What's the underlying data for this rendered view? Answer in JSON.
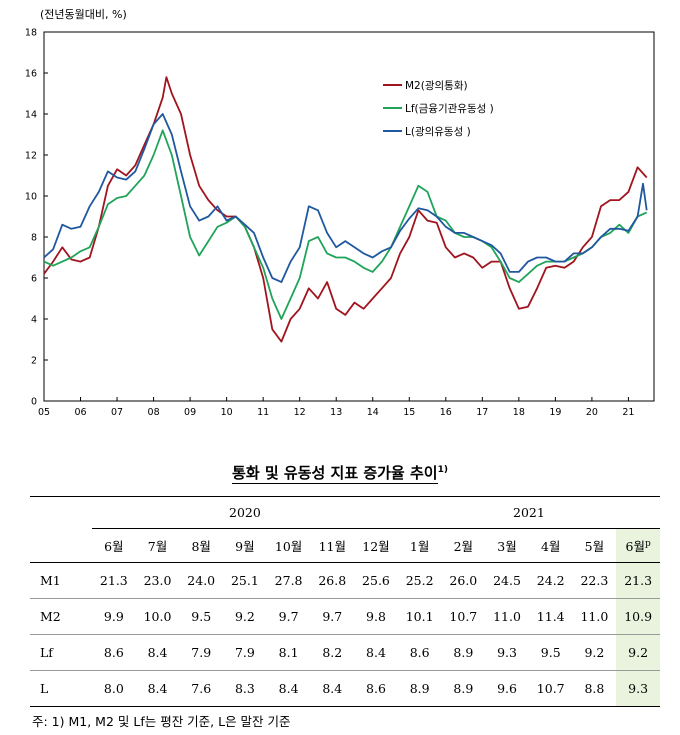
{
  "chart_data": {
    "type": "line",
    "unit_label": "(전년동월대비, %)",
    "x_ticks": [
      "05",
      "06",
      "07",
      "08",
      "09",
      "10",
      "11",
      "12",
      "13",
      "14",
      "15",
      "16",
      "17",
      "18",
      "19",
      "20",
      "21"
    ],
    "y_ticks": [
      "0",
      "2",
      "4",
      "6",
      "8",
      "10",
      "12",
      "14",
      "16",
      "18"
    ],
    "ylim": [
      0,
      18
    ],
    "xlim": [
      2005,
      2021.5
    ],
    "legend_position": "top-right, inside plot",
    "series": [
      {
        "name": "M2(광의통화)",
        "color": "#a0141e",
        "x": [
          2005.0,
          2005.25,
          2005.5,
          2005.75,
          2006.0,
          2006.25,
          2006.5,
          2006.75,
          2007.0,
          2007.25,
          2007.5,
          2007.75,
          2008.0,
          2008.25,
          2008.35,
          2008.5,
          2008.75,
          2009.0,
          2009.25,
          2009.5,
          2009.75,
          2010.0,
          2010.25,
          2010.5,
          2010.75,
          2011.0,
          2011.25,
          2011.5,
          2011.75,
          2012.0,
          2012.25,
          2012.5,
          2012.75,
          2013.0,
          2013.25,
          2013.5,
          2013.75,
          2014.0,
          2014.25,
          2014.5,
          2014.75,
          2015.0,
          2015.25,
          2015.5,
          2015.75,
          2016.0,
          2016.25,
          2016.5,
          2016.75,
          2017.0,
          2017.25,
          2017.5,
          2017.75,
          2018.0,
          2018.25,
          2018.5,
          2018.75,
          2019.0,
          2019.25,
          2019.5,
          2019.75,
          2020.0,
          2020.25,
          2020.5,
          2020.75,
          2021.0,
          2021.25,
          2021.5
        ],
        "y": [
          6.2,
          6.8,
          7.5,
          6.9,
          6.8,
          7.0,
          8.5,
          10.5,
          11.3,
          11.0,
          11.5,
          12.5,
          13.5,
          14.8,
          15.8,
          15.0,
          14.0,
          12.0,
          10.5,
          9.8,
          9.3,
          9.0,
          9.0,
          8.5,
          7.5,
          6.0,
          3.5,
          2.9,
          4.0,
          4.5,
          5.5,
          5.0,
          5.8,
          4.5,
          4.2,
          4.8,
          4.5,
          5.0,
          5.5,
          6.0,
          7.2,
          8.0,
          9.3,
          8.8,
          8.7,
          7.5,
          7.0,
          7.2,
          7.0,
          6.5,
          6.8,
          6.8,
          5.5,
          4.5,
          4.6,
          5.5,
          6.5,
          6.6,
          6.5,
          6.8,
          7.5,
          8.0,
          9.5,
          9.8,
          9.8,
          10.2,
          11.4,
          10.9
        ]
      },
      {
        "name": "Lf(금융기관유동성 )",
        "color": "#1fa45a",
        "x": [
          2005.0,
          2005.25,
          2005.5,
          2005.75,
          2006.0,
          2006.25,
          2006.5,
          2006.75,
          2007.0,
          2007.25,
          2007.5,
          2007.75,
          2008.0,
          2008.25,
          2008.5,
          2008.75,
          2009.0,
          2009.25,
          2009.5,
          2009.75,
          2010.0,
          2010.25,
          2010.5,
          2010.75,
          2011.0,
          2011.25,
          2011.5,
          2011.75,
          2012.0,
          2012.25,
          2012.5,
          2012.75,
          2013.0,
          2013.25,
          2013.5,
          2013.75,
          2014.0,
          2014.25,
          2014.5,
          2014.75,
          2015.0,
          2015.25,
          2015.5,
          2015.75,
          2016.0,
          2016.25,
          2016.5,
          2016.75,
          2017.0,
          2017.25,
          2017.5,
          2017.75,
          2018.0,
          2018.25,
          2018.5,
          2018.75,
          2019.0,
          2019.25,
          2019.5,
          2019.75,
          2020.0,
          2020.25,
          2020.5,
          2020.75,
          2021.0,
          2021.25,
          2021.5
        ],
        "y": [
          6.8,
          6.6,
          6.8,
          7.0,
          7.3,
          7.5,
          8.5,
          9.6,
          9.9,
          10.0,
          10.5,
          11.0,
          12.0,
          13.2,
          12.0,
          10.0,
          8.0,
          7.1,
          7.8,
          8.5,
          8.7,
          9.0,
          8.5,
          7.5,
          6.5,
          5.0,
          4.0,
          5.0,
          6.0,
          7.8,
          8.0,
          7.2,
          7.0,
          7.0,
          6.8,
          6.5,
          6.3,
          6.8,
          7.5,
          8.5,
          9.5,
          10.5,
          10.2,
          9.0,
          8.8,
          8.2,
          8.0,
          8.0,
          7.8,
          7.5,
          6.8,
          6.0,
          5.8,
          6.2,
          6.6,
          6.8,
          6.8,
          6.8,
          7.0,
          7.2,
          7.5,
          8.0,
          8.2,
          8.6,
          8.2,
          9.0,
          9.2
        ]
      },
      {
        "name": "L(광의유동성 )",
        "color": "#2058a0",
        "x": [
          2005.0,
          2005.25,
          2005.5,
          2005.75,
          2006.0,
          2006.25,
          2006.5,
          2006.75,
          2007.0,
          2007.25,
          2007.5,
          2007.75,
          2008.0,
          2008.25,
          2008.5,
          2008.75,
          2009.0,
          2009.25,
          2009.5,
          2009.75,
          2010.0,
          2010.25,
          2010.5,
          2010.75,
          2011.0,
          2011.25,
          2011.5,
          2011.75,
          2012.0,
          2012.25,
          2012.5,
          2012.75,
          2013.0,
          2013.25,
          2013.5,
          2013.75,
          2014.0,
          2014.25,
          2014.5,
          2014.75,
          2015.0,
          2015.25,
          2015.5,
          2015.75,
          2016.0,
          2016.25,
          2016.5,
          2016.75,
          2017.0,
          2017.25,
          2017.5,
          2017.75,
          2018.0,
          2018.25,
          2018.5,
          2018.75,
          2019.0,
          2019.25,
          2019.5,
          2019.75,
          2020.0,
          2020.25,
          2020.5,
          2020.75,
          2021.0,
          2021.25,
          2021.4,
          2021.5
        ],
        "y": [
          7.0,
          7.4,
          8.6,
          8.4,
          8.5,
          9.5,
          10.2,
          11.2,
          10.9,
          10.8,
          11.2,
          12.3,
          13.5,
          14.0,
          13.0,
          11.2,
          9.5,
          8.8,
          9.0,
          9.5,
          8.8,
          9.0,
          8.6,
          8.2,
          7.0,
          6.0,
          5.8,
          6.8,
          7.5,
          9.5,
          9.3,
          8.2,
          7.5,
          7.8,
          7.5,
          7.2,
          7.0,
          7.3,
          7.5,
          8.3,
          8.9,
          9.4,
          9.3,
          9.0,
          8.5,
          8.2,
          8.2,
          8.0,
          7.8,
          7.6,
          7.2,
          6.3,
          6.3,
          6.8,
          7.0,
          7.0,
          6.8,
          6.8,
          7.2,
          7.2,
          7.5,
          8.0,
          8.4,
          8.4,
          8.3,
          9.0,
          10.6,
          9.3
        ]
      }
    ]
  },
  "table": {
    "title": "통화 및 유동성 지표 증가율 추이",
    "title_footnote_mark": "1)",
    "years": [
      "2020",
      "2021"
    ],
    "months": [
      "6월",
      "7월",
      "8월",
      "9월",
      "10월",
      "11월",
      "12월",
      "1월",
      "2월",
      "3월",
      "4월",
      "5월",
      "6월"
    ],
    "last_month_mark": "p",
    "rows": [
      {
        "label": "M1",
        "values": [
          "21.3",
          "23.0",
          "24.0",
          "25.1",
          "27.8",
          "26.8",
          "25.6",
          "25.2",
          "26.0",
          "24.5",
          "24.2",
          "22.3",
          "21.3"
        ]
      },
      {
        "label": "M2",
        "values": [
          "9.9",
          "10.0",
          "9.5",
          "9.2",
          "9.7",
          "9.7",
          "9.8",
          "10.1",
          "10.7",
          "11.0",
          "11.4",
          "11.0",
          "10.9"
        ]
      },
      {
        "label": "Lf",
        "values": [
          "8.6",
          "8.4",
          "7.9",
          "7.9",
          "8.1",
          "8.2",
          "8.4",
          "8.6",
          "8.9",
          "9.3",
          "9.5",
          "9.2",
          "9.2"
        ]
      },
      {
        "label": "L",
        "values": [
          "8.0",
          "8.4",
          "7.6",
          "8.3",
          "8.4",
          "8.4",
          "8.6",
          "8.9",
          "8.9",
          "9.6",
          "10.7",
          "8.8",
          "9.3"
        ]
      }
    ],
    "highlight_color": "#eaf3de"
  },
  "footnote": "주: 1) M1, M2 및 Lf는 평잔 기준, L은 말잔 기준"
}
